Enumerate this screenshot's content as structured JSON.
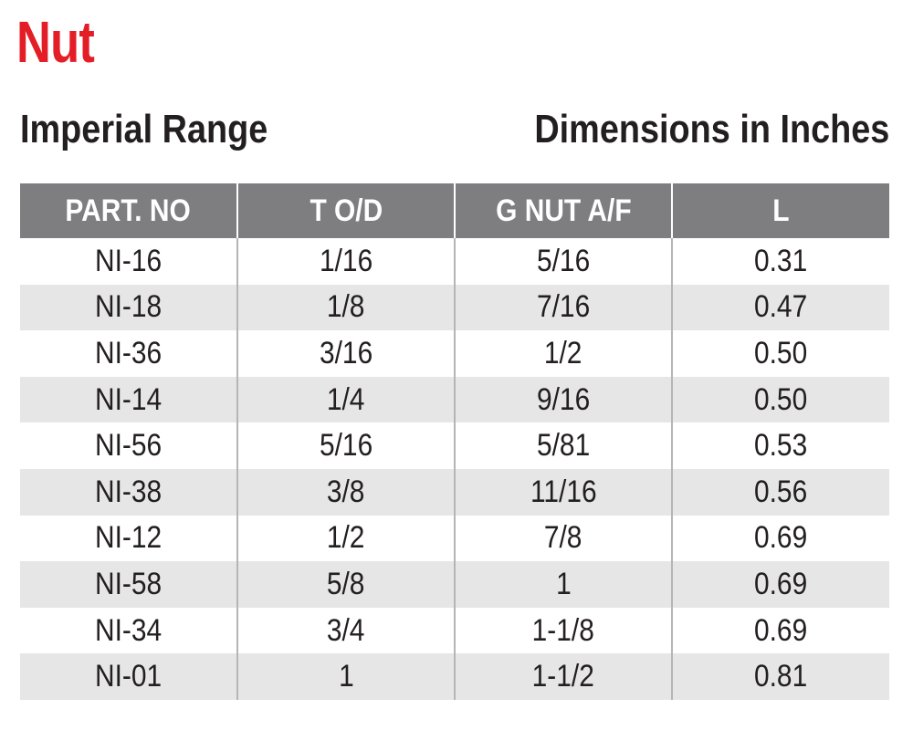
{
  "title": "Nut",
  "subtitle_left": "Imperial Range",
  "subtitle_right": "Dimensions in Inches",
  "table": {
    "headers": [
      "PART. NO",
      "T O/D",
      "G NUT A/F",
      "L"
    ],
    "rows": [
      [
        "NI-16",
        "1/16",
        "5/16",
        "0.31"
      ],
      [
        "NI-18",
        "1/8",
        "7/16",
        "0.47"
      ],
      [
        "NI-36",
        "3/16",
        "1/2",
        "0.50"
      ],
      [
        "NI-14",
        "1/4",
        "9/16",
        "0.50"
      ],
      [
        "NI-56",
        "5/16",
        "5/81",
        "0.53"
      ],
      [
        "NI-38",
        "3/8",
        "11/16",
        "0.56"
      ],
      [
        "NI-12",
        "1/2",
        "7/8",
        "0.69"
      ],
      [
        "NI-58",
        "5/8",
        "1",
        "0.69"
      ],
      [
        "NI-34",
        "3/4",
        "1-1/8",
        "0.69"
      ],
      [
        "NI-01",
        "1",
        "1-1/2",
        "0.81"
      ]
    ]
  },
  "colors": {
    "title": "#e41e26",
    "header_bg": "#7e7e80",
    "stripe": "#e6e6e7"
  }
}
